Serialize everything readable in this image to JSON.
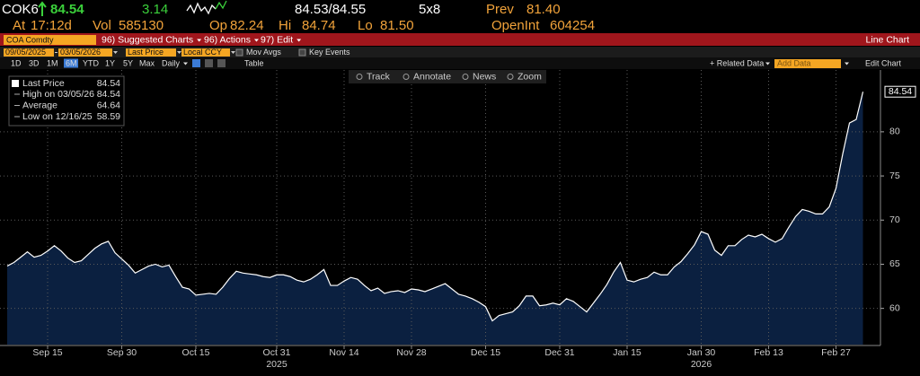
{
  "quote": {
    "ticker": "COK6",
    "last": "84.54",
    "change": "3.14",
    "bid_ask": "84.53/84.55",
    "size": "5x8",
    "prev_label": "Prev",
    "prev": "81.40",
    "fields": [
      {
        "label": "At",
        "value": "17:12d"
      },
      {
        "label": "Vol",
        "value": "585130"
      },
      {
        "label": "Op",
        "value": "82.24"
      },
      {
        "label": "Hi",
        "value": "84.74"
      },
      {
        "label": "Lo",
        "value": "81.50"
      },
      {
        "label": "OpenInt",
        "value": "604254"
      }
    ]
  },
  "menu": {
    "security": "COA Comdty",
    "items": [
      "96) Suggested Charts",
      "96) Actions",
      "97) Edit"
    ],
    "chart_type": "Line Chart"
  },
  "settings": {
    "start": "09/05/2025",
    "end": "03/05/2026",
    "field": "Last Price",
    "currency": "Local CCY",
    "options": [
      "Mov Avgs",
      "Key Events"
    ]
  },
  "ranges": {
    "items": [
      "1D",
      "3D",
      "1M",
      "6M",
      "YTD",
      "1Y",
      "5Y",
      "Max"
    ],
    "active": "6M",
    "frequency": "Daily",
    "table": "Table",
    "related": "+ Related Data",
    "add_data": "Add Data",
    "edit": "Edit Chart"
  },
  "tools": [
    "Track",
    "Annotate",
    "News",
    "Zoom"
  ],
  "chart_data": {
    "type": "area",
    "categories": [
      null,
      null,
      null,
      null,
      null,
      null,
      "Sep 15",
      null,
      null,
      null,
      null,
      null,
      null,
      null,
      null,
      null,
      null,
      "Sep 30",
      null,
      null,
      null,
      null,
      null,
      null,
      null,
      null,
      null,
      null,
      "Oct 15",
      null,
      null,
      null,
      null,
      null,
      null,
      null,
      null,
      null,
      null,
      null,
      "Oct 31",
      null,
      null,
      null,
      null,
      null,
      null,
      null,
      null,
      null,
      "Nov 14",
      null,
      null,
      null,
      null,
      null,
      null,
      null,
      null,
      null,
      "Nov 28",
      null,
      null,
      null,
      null,
      null,
      null,
      null,
      null,
      null,
      null,
      "Dec 15",
      null,
      null,
      null,
      null,
      null,
      null,
      null,
      null,
      null,
      null,
      "Dec 31",
      null,
      null,
      null,
      null,
      null,
      null,
      null,
      null,
      null,
      "Jan 15",
      null,
      null,
      null,
      null,
      null,
      null,
      null,
      null,
      null,
      null,
      "Jan 30",
      null,
      null,
      null,
      null,
      null,
      null,
      null,
      null,
      null,
      "Feb 13",
      null,
      null,
      null,
      null,
      null,
      null,
      null,
      null,
      null,
      "Feb 27",
      null,
      null,
      null,
      null
    ],
    "year_labels": [
      "2025",
      "2026"
    ],
    "series": [
      {
        "name": "Last Price",
        "color": "#ffffff",
        "fill": "#0b2040",
        "values": [
          64.8,
          65.2,
          65.8,
          66.4,
          65.8,
          66.0,
          66.5,
          67.1,
          66.5,
          65.7,
          65.2,
          65.4,
          66.1,
          66.8,
          67.3,
          67.6,
          66.3,
          65.6,
          64.9,
          64.0,
          64.4,
          64.8,
          65.0,
          64.7,
          64.9,
          63.6,
          62.4,
          62.2,
          61.5,
          61.6,
          61.7,
          61.6,
          62.4,
          63.4,
          64.2,
          64.0,
          63.9,
          63.8,
          63.6,
          63.5,
          63.8,
          63.8,
          63.6,
          63.2,
          63.0,
          63.3,
          63.8,
          64.4,
          62.6,
          62.6,
          63.1,
          63.5,
          63.3,
          62.6,
          62.0,
          62.3,
          61.7,
          61.9,
          62.0,
          61.8,
          62.2,
          62.1,
          61.9,
          62.2,
          62.5,
          62.8,
          62.2,
          61.6,
          61.4,
          61.1,
          60.7,
          60.2,
          58.59,
          59.2,
          59.4,
          59.6,
          60.3,
          61.4,
          61.4,
          60.3,
          60.4,
          60.6,
          60.4,
          61.1,
          60.8,
          60.2,
          59.6,
          60.6,
          61.6,
          62.7,
          64.1,
          65.2,
          63.2,
          63.0,
          63.3,
          63.5,
          64.1,
          63.8,
          63.8,
          64.7,
          65.3,
          66.2,
          67.2,
          68.7,
          68.4,
          66.6,
          66.0,
          67.1,
          67.1,
          67.8,
          68.3,
          68.1,
          68.4,
          67.9,
          67.5,
          67.9,
          69.2,
          70.4,
          71.2,
          71.0,
          70.7,
          70.7,
          71.5,
          73.6,
          77.5,
          81.0,
          81.4,
          84.54
        ]
      }
    ],
    "stats": [
      {
        "label": "High on 03/05/26",
        "value": 84.54
      },
      {
        "label": "Average",
        "value": 64.64
      },
      {
        "label": "Low on 12/16/25",
        "value": 58.59
      }
    ],
    "ylim": [
      55.9,
      87
    ],
    "yticks": [
      60,
      65,
      70,
      75,
      80
    ],
    "grid": true
  }
}
